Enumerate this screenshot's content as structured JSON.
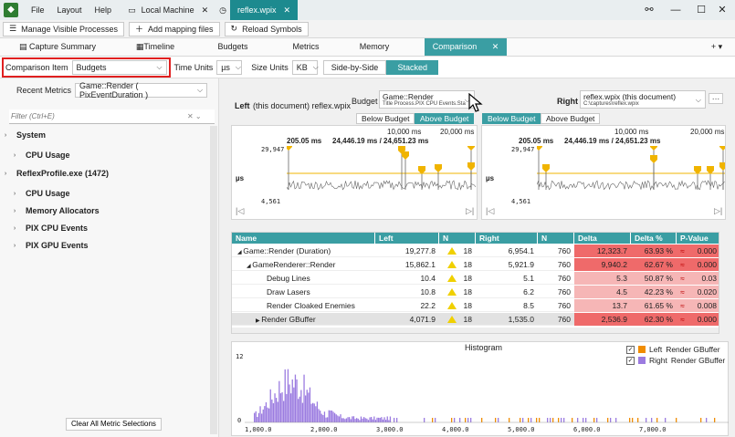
{
  "titlebar": {
    "menus": [
      "File",
      "Layout",
      "Help"
    ],
    "tabs": [
      {
        "label": "Local Machine",
        "icon": "computer-icon",
        "active": false
      },
      {
        "label": "reflex.wpix",
        "icon": "clock-icon",
        "active": true
      }
    ],
    "controls": [
      "link-icon",
      "minimize-icon",
      "maximize-icon",
      "close-icon"
    ]
  },
  "toolbar": {
    "manage_label": "Manage Visible Processes",
    "add_mapping_label": "Add mapping files",
    "reload_label": "Reload Symbols"
  },
  "view_tabs": [
    "Capture Summary",
    "Timeline",
    "Budgets",
    "Metrics",
    "Memory",
    "Comparison"
  ],
  "active_view_tab": "Comparison",
  "options": {
    "comparison_item_label": "Comparison Item",
    "comparison_item_value": "Budgets",
    "time_units_label": "Time Units",
    "time_units_value": "µs",
    "size_units_label": "Size Units",
    "size_units_value": "KB",
    "side_by_side_label": "Side-by-Side",
    "stacked_label": "Stacked"
  },
  "left_pane": {
    "recent_label": "Recent Metrics",
    "recent_value": "Game::Render ( PixEventDuration )",
    "filter_placeholder": "Filter (Ctrl+E)",
    "tree": [
      {
        "label": "System",
        "level": 0,
        "bold": true
      },
      {
        "label": "CPU Usage",
        "level": 1,
        "bold": true
      },
      {
        "label": "ReflexProfile.exe (1472)",
        "level": 0,
        "bold": true
      },
      {
        "label": "CPU Usage",
        "level": 1,
        "bold": true
      },
      {
        "label": "Memory Allocators",
        "level": 1,
        "bold": true
      },
      {
        "label": "PIX CPU Events",
        "level": 1,
        "bold": true
      },
      {
        "label": "PIX GPU Events",
        "level": 1,
        "bold": true
      }
    ],
    "clear_label": "Clear All Metric Selections"
  },
  "compare": {
    "left_label": "Left",
    "left_doc": "(this document)  reflex.wpix",
    "budget_label": "Budget",
    "budget_value": "Game::Render",
    "budget_sub": "Title Process.PIX CPU Events.Sta",
    "right_label": "Right",
    "right_value": "reflex.wpix (this document)",
    "right_sub": "C:\\captures\\reflex.wpix",
    "more_label": "···",
    "below_budget": "Below Budget",
    "above_budget": "Above Budget"
  },
  "timelines": {
    "time_start": "10,000 ms",
    "time_end": "20,000 ms",
    "range_start": "205.05 ms",
    "range_mid": "24,446.19 ms / 24,651.23 ms",
    "range_end": "24,651.23 ms",
    "y_max": "29,947",
    "y_min": "4,561",
    "unit": "µs"
  },
  "table": {
    "columns": [
      "Name",
      "Left",
      "N",
      "Right",
      "N",
      "Delta",
      "Delta %",
      "P-Value"
    ],
    "rows": [
      {
        "name": "Game::Render (Duration)",
        "indent": 0,
        "arrow": "◢",
        "left": "19,277.8",
        "ln": "18",
        "right": "6,954.1",
        "rn": "760",
        "delta": "12,323.7",
        "dpct": "63.93 %",
        "p": "0.000"
      },
      {
        "name": "GameRenderer::Render",
        "indent": 1,
        "arrow": "◢",
        "left": "15,862.1",
        "ln": "18",
        "right": "5,921.9",
        "rn": "760",
        "delta": "9,940.2",
        "dpct": "62.67 %",
        "p": "0.000"
      },
      {
        "name": "Debug Lines",
        "indent": 2,
        "arrow": "",
        "left": "10.4",
        "ln": "18",
        "right": "5.1",
        "rn": "760",
        "delta": "5.3",
        "dpct": "50.87 %",
        "p": "0.03"
      },
      {
        "name": "Draw Lasers",
        "indent": 2,
        "arrow": "",
        "left": "10.8",
        "ln": "18",
        "right": "6.2",
        "rn": "760",
        "delta": "4.5",
        "dpct": "42.23 %",
        "p": "0.020"
      },
      {
        "name": "Render Cloaked Enemies",
        "indent": 2,
        "arrow": "",
        "left": "22.2",
        "ln": "18",
        "right": "8.5",
        "rn": "760",
        "delta": "13.7",
        "dpct": "61.65 %",
        "p": "0.008"
      },
      {
        "name": "Render GBuffer",
        "indent": 2,
        "arrow": "▶",
        "left": "4,071.9",
        "ln": "18",
        "right": "1,535.0",
        "rn": "760",
        "delta": "2,536.9",
        "dpct": "62.30 %",
        "p": "0.000"
      }
    ]
  },
  "histogram": {
    "title": "Histogram",
    "y_tick_top": "12",
    "y_tick_bottom": "0",
    "x_ticks": [
      "1,000.0",
      "2,000.0",
      "3,000.0",
      "4,000.0",
      "5,000.0",
      "6,000.0",
      "7,000.0"
    ],
    "legend": [
      {
        "side": "Left",
        "label": "Render GBuffer",
        "color": "#f08c00"
      },
      {
        "side": "Right",
        "label": "Render GBuffer",
        "color": "#9b7be0"
      }
    ]
  }
}
